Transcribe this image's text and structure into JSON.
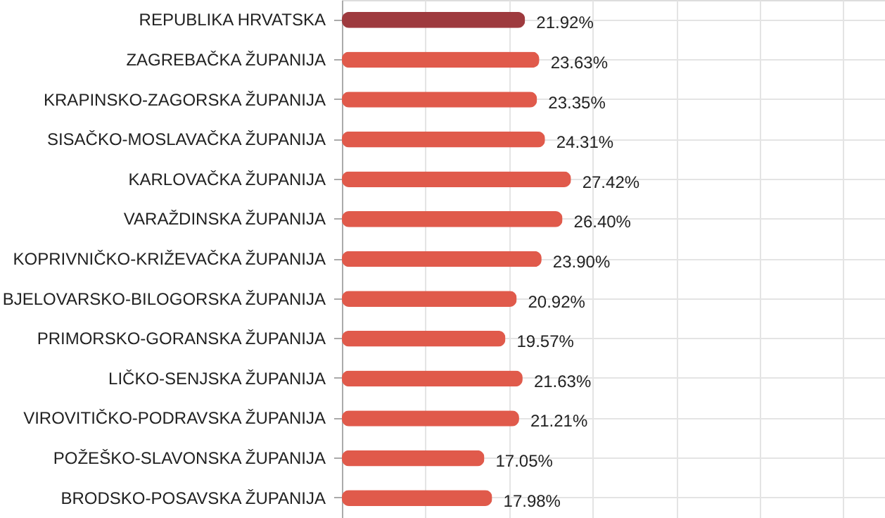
{
  "chart_data": {
    "type": "bar",
    "orientation": "horizontal",
    "categories": [
      "REPUBLIKA HRVATSKA",
      "ZAGREBAČKA ŽUPANIJA",
      "KRAPINSKO-ZAGORSKA ŽUPANIJA",
      "SISAČKO-MOSLAVAČKA ŽUPANIJA",
      "KARLOVAČKA ŽUPANIJA",
      "VARAŽDINSKA ŽUPANIJA",
      "KOPRIVNIČKO-KRIŽEVAČKA ŽUPANIJA",
      "BJELOVARSKO-BILOGORSKA ŽUPANIJA",
      "PRIMORSKO-GORANSKA ŽUPANIJA",
      "LIČKO-SENJSKA ŽUPANIJA",
      "VIROVITIČKO-PODRAVSKA ŽUPANIJA",
      "POŽEŠKO-SLAVONSKA ŽUPANIJA",
      "BRODSKO-POSAVSKA ŽUPANIJA"
    ],
    "values": [
      21.92,
      23.63,
      23.35,
      24.31,
      27.42,
      26.4,
      23.9,
      20.92,
      19.57,
      21.63,
      21.21,
      17.05,
      17.98
    ],
    "value_labels": [
      "21.92%",
      "23.63%",
      "23.35%",
      "24.31%",
      "27.42%",
      "26.40%",
      "23.90%",
      "20.92%",
      "19.57%",
      "21.63%",
      "21.21%",
      "17.05%",
      "17.98%"
    ],
    "colors": [
      "#9e3a3e",
      "#e05a4b",
      "#e05a4b",
      "#e05a4b",
      "#e05a4b",
      "#e05a4b",
      "#e05a4b",
      "#e05a4b",
      "#e05a4b",
      "#e05a4b",
      "#e05a4b",
      "#e05a4b",
      "#e05a4b"
    ],
    "xlim": [
      0,
      65
    ],
    "xticks": [
      {
        "value": 0,
        "label": null
      },
      {
        "value": 10,
        "label": null
      },
      {
        "value": 20,
        "label": null
      },
      {
        "value": 30,
        "label": null
      },
      {
        "value": 40,
        "label": null
      },
      {
        "value": 50,
        "label": null
      },
      {
        "value": 60,
        "label": null
      }
    ],
    "tick_labels": "y",
    "grid": true
  }
}
